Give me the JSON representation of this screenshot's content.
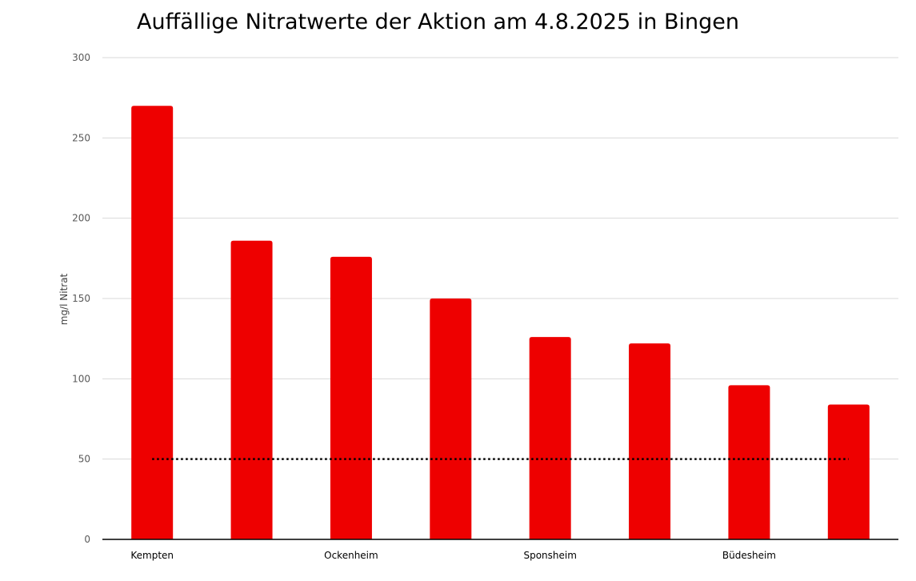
{
  "chart_data": {
    "type": "bar",
    "title": "Auffällige Nitratwerte der Aktion am 4.8.2025 in Bingen",
    "xlabel": "",
    "ylabel": "mg/l Nitrat",
    "categories": [
      "Kempten",
      "",
      "Ockenheim",
      "",
      "Sponsheim",
      "",
      "Büdesheim",
      ""
    ],
    "values": [
      270,
      186,
      176,
      150,
      126,
      122,
      96,
      84
    ],
    "ylim": [
      0,
      300
    ],
    "yticks": [
      0,
      50,
      100,
      150,
      200,
      250,
      300
    ],
    "grid": true,
    "reference_line": {
      "value": 50,
      "style": "dotted",
      "color": "#000000"
    },
    "bar_color": "#EE0000"
  }
}
